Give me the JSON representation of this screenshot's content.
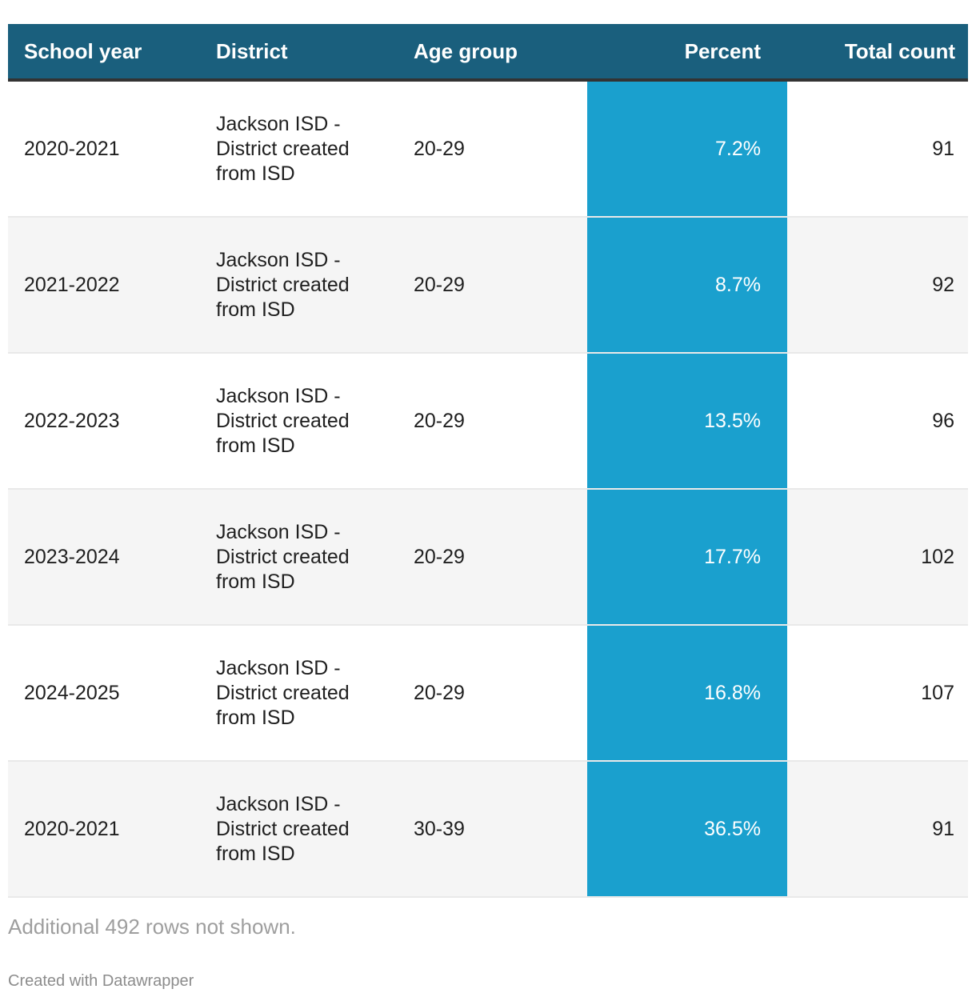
{
  "table": {
    "columns": [
      {
        "id": "school_year",
        "label": "School year",
        "align": "left"
      },
      {
        "id": "district",
        "label": "District",
        "align": "left"
      },
      {
        "id": "age_group",
        "label": "Age group",
        "align": "left"
      },
      {
        "id": "percent",
        "label": "Percent",
        "align": "right"
      },
      {
        "id": "total_count",
        "label": "Total count",
        "align": "right"
      }
    ],
    "rows": [
      {
        "school_year": "2020-2021",
        "district": "Jackson ISD - District created from ISD",
        "age_group": "20-29",
        "percent": "7.2%",
        "total_count": "91"
      },
      {
        "school_year": "2021-2022",
        "district": "Jackson ISD - District created from ISD",
        "age_group": "20-29",
        "percent": "8.7%",
        "total_count": "92"
      },
      {
        "school_year": "2022-2023",
        "district": "Jackson ISD - District created from ISD",
        "age_group": "20-29",
        "percent": "13.5%",
        "total_count": "96"
      },
      {
        "school_year": "2023-2024",
        "district": "Jackson ISD - District created from ISD",
        "age_group": "20-29",
        "percent": "17.7%",
        "total_count": "102"
      },
      {
        "school_year": "2024-2025",
        "district": "Jackson ISD - District created from ISD",
        "age_group": "20-29",
        "percent": "16.8%",
        "total_count": "107"
      },
      {
        "school_year": "2020-2021",
        "district": "Jackson ISD - District created from ISD",
        "age_group": "30-39",
        "percent": "36.5%",
        "total_count": "91"
      }
    ]
  },
  "footer": {
    "note": "Additional 492 rows not shown.",
    "attribution": "Created with Datawrapper"
  },
  "colors": {
    "header_bg": "#1a5f7d",
    "header_text": "#ffffff",
    "border_dark": "#333333",
    "percent_band": "#1aa0ce",
    "row_alt_bg": "#f5f5f5",
    "row_border": "#e9e9e9"
  },
  "chart_data": {
    "type": "table",
    "title": "",
    "columns": [
      "School year",
      "District",
      "Age group",
      "Percent",
      "Total count"
    ],
    "rows": [
      [
        "2020-2021",
        "Jackson ISD - District created from ISD",
        "20-29",
        7.2,
        91
      ],
      [
        "2021-2022",
        "Jackson ISD - District created from ISD",
        "20-29",
        8.7,
        92
      ],
      [
        "2022-2023",
        "Jackson ISD - District created from ISD",
        "20-29",
        13.5,
        96
      ],
      [
        "2023-2024",
        "Jackson ISD - District created from ISD",
        "20-29",
        17.7,
        102
      ],
      [
        "2024-2025",
        "Jackson ISD - District created from ISD",
        "20-29",
        16.8,
        107
      ],
      [
        "2020-2021",
        "Jackson ISD - District created from ISD",
        "30-39",
        36.5,
        91
      ]
    ],
    "percent_unit": "%",
    "percent_column_highlight": "#1aa0ce",
    "note": "Additional 492 rows not shown."
  }
}
